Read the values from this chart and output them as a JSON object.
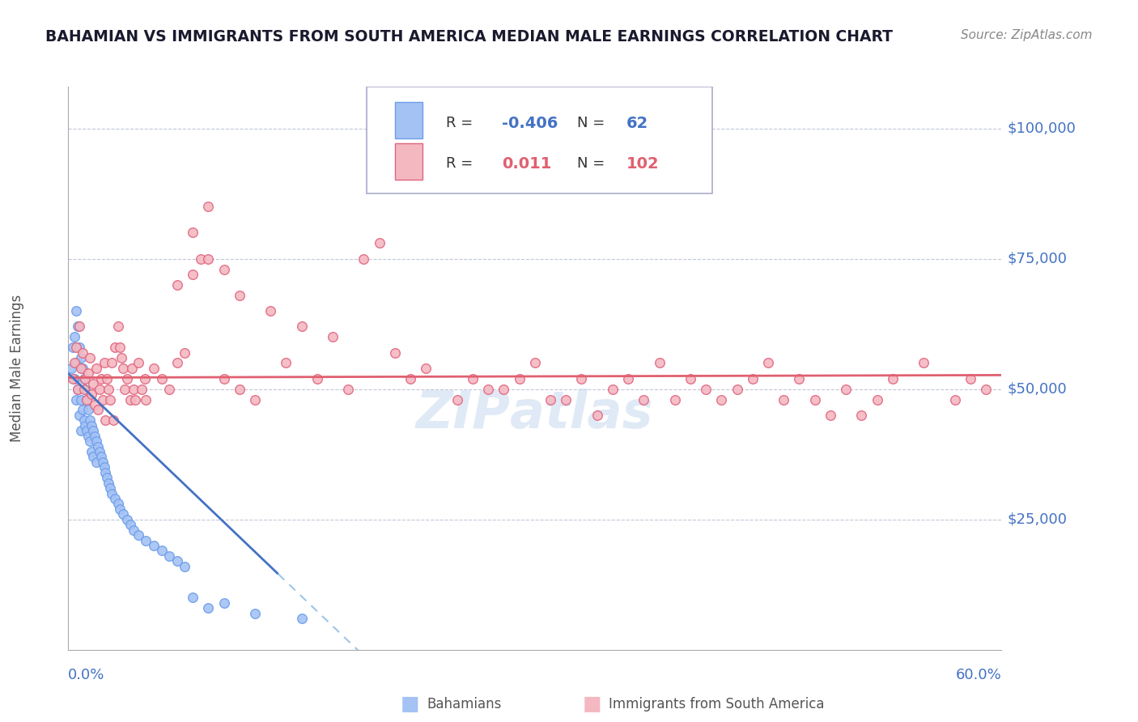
{
  "title": "BAHAMIAN VS IMMIGRANTS FROM SOUTH AMERICA MEDIAN MALE EARNINGS CORRELATION CHART",
  "source": "Source: ZipAtlas.com",
  "ylabel": "Median Male Earnings",
  "xmin": 0.0,
  "xmax": 0.6,
  "ymin": 0,
  "ymax": 108000,
  "yticks": [
    25000,
    50000,
    75000,
    100000
  ],
  "ytick_labels": [
    "$25,000",
    "$50,000",
    "$75,000",
    "$100,000"
  ],
  "blue_R": -0.406,
  "blue_N": 62,
  "pink_R": 0.011,
  "pink_N": 102,
  "blue_scatter_x": [
    0.002,
    0.003,
    0.004,
    0.004,
    0.005,
    0.005,
    0.005,
    0.006,
    0.006,
    0.007,
    0.007,
    0.008,
    0.008,
    0.008,
    0.009,
    0.009,
    0.01,
    0.01,
    0.011,
    0.011,
    0.012,
    0.012,
    0.013,
    0.013,
    0.014,
    0.014,
    0.015,
    0.015,
    0.016,
    0.016,
    0.017,
    0.018,
    0.018,
    0.019,
    0.02,
    0.021,
    0.022,
    0.023,
    0.024,
    0.025,
    0.026,
    0.027,
    0.028,
    0.03,
    0.032,
    0.033,
    0.035,
    0.038,
    0.04,
    0.042,
    0.045,
    0.05,
    0.055,
    0.06,
    0.065,
    0.07,
    0.075,
    0.08,
    0.09,
    0.1,
    0.12,
    0.15
  ],
  "blue_scatter_y": [
    54000,
    58000,
    60000,
    52000,
    65000,
    55000,
    48000,
    62000,
    50000,
    58000,
    45000,
    56000,
    48000,
    42000,
    54000,
    46000,
    52000,
    44000,
    50000,
    43000,
    48000,
    42000,
    46000,
    41000,
    44000,
    40000,
    43000,
    38000,
    42000,
    37000,
    41000,
    40000,
    36000,
    39000,
    38000,
    37000,
    36000,
    35000,
    34000,
    33000,
    32000,
    31000,
    30000,
    29000,
    28000,
    27000,
    26000,
    25000,
    24000,
    23000,
    22000,
    21000,
    20000,
    19000,
    18000,
    17000,
    16000,
    10000,
    8000,
    9000,
    7000,
    6000
  ],
  "pink_scatter_x": [
    0.003,
    0.004,
    0.005,
    0.006,
    0.007,
    0.008,
    0.009,
    0.01,
    0.011,
    0.012,
    0.013,
    0.014,
    0.015,
    0.016,
    0.017,
    0.018,
    0.019,
    0.02,
    0.021,
    0.022,
    0.023,
    0.024,
    0.025,
    0.026,
    0.027,
    0.028,
    0.029,
    0.03,
    0.032,
    0.033,
    0.034,
    0.035,
    0.036,
    0.038,
    0.04,
    0.041,
    0.042,
    0.043,
    0.045,
    0.047,
    0.049,
    0.05,
    0.055,
    0.06,
    0.065,
    0.07,
    0.075,
    0.08,
    0.085,
    0.09,
    0.1,
    0.11,
    0.12,
    0.14,
    0.16,
    0.18,
    0.19,
    0.2,
    0.22,
    0.25,
    0.27,
    0.29,
    0.3,
    0.32,
    0.33,
    0.35,
    0.37,
    0.38,
    0.4,
    0.42,
    0.43,
    0.45,
    0.47,
    0.48,
    0.49,
    0.5,
    0.52,
    0.53,
    0.55,
    0.57,
    0.58,
    0.59,
    0.07,
    0.08,
    0.09,
    0.1,
    0.11,
    0.13,
    0.15,
    0.17,
    0.21,
    0.23,
    0.26,
    0.28,
    0.31,
    0.34,
    0.36,
    0.39,
    0.41,
    0.44,
    0.46,
    0.51
  ],
  "pink_scatter_y": [
    52000,
    55000,
    58000,
    50000,
    62000,
    54000,
    57000,
    50000,
    52000,
    48000,
    53000,
    56000,
    49000,
    51000,
    47000,
    54000,
    46000,
    50000,
    52000,
    48000,
    55000,
    44000,
    52000,
    50000,
    48000,
    55000,
    44000,
    58000,
    62000,
    58000,
    56000,
    54000,
    50000,
    52000,
    48000,
    54000,
    50000,
    48000,
    55000,
    50000,
    52000,
    48000,
    54000,
    52000,
    50000,
    55000,
    57000,
    80000,
    75000,
    85000,
    52000,
    50000,
    48000,
    55000,
    52000,
    50000,
    75000,
    78000,
    52000,
    48000,
    50000,
    52000,
    55000,
    48000,
    52000,
    50000,
    48000,
    55000,
    52000,
    48000,
    50000,
    55000,
    52000,
    48000,
    45000,
    50000,
    48000,
    52000,
    55000,
    48000,
    52000,
    50000,
    70000,
    72000,
    75000,
    73000,
    68000,
    65000,
    62000,
    60000,
    57000,
    54000,
    52000,
    50000,
    48000,
    45000,
    52000,
    48000,
    50000,
    52000,
    48000,
    45000
  ]
}
